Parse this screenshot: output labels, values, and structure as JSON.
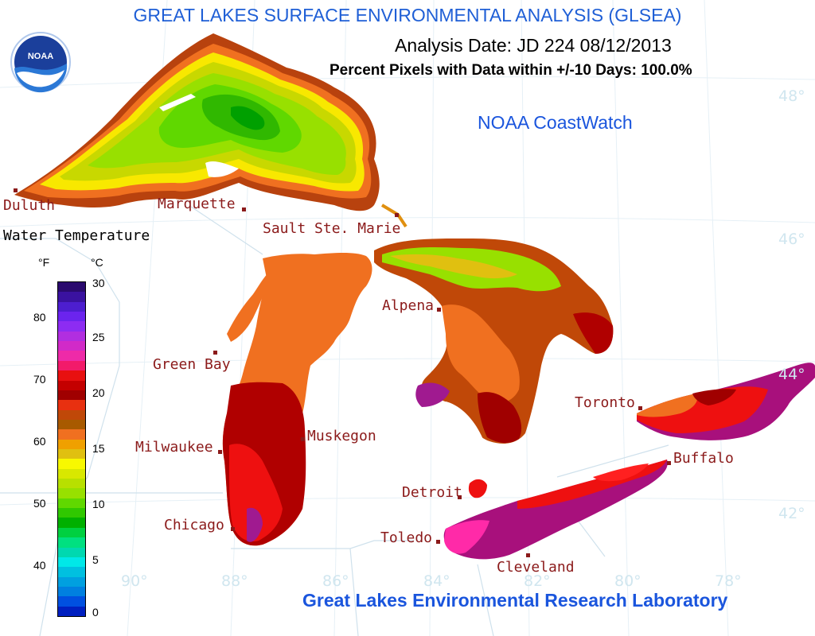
{
  "header": {
    "title": "GREAT LAKES SURFACE ENVIRONMENTAL ANALYSIS (GLSEA)",
    "analysis_date": "Analysis Date:  JD 224 08/12/2013",
    "percent_pixels": "Percent Pixels with Data within +/-10 Days: 100.0%",
    "coastwatch": "NOAA CoastWatch",
    "footer": "Great Lakes Environmental Research Laboratory"
  },
  "logo": {
    "text": "NOAA",
    "icon": "noaa-logo-icon"
  },
  "legend": {
    "title": "Water Temperature",
    "f_unit": "°F",
    "c_unit": "°C",
    "f_ticks": [
      "80",
      "70",
      "60",
      "50",
      "40"
    ],
    "c_ticks": [
      "30",
      "25",
      "20",
      "15",
      "10",
      "5",
      "0"
    ],
    "colors_top_to_bottom": [
      "#2a0a6e",
      "#3a12a0",
      "#4d1ecf",
      "#6b24ee",
      "#8d2cf2",
      "#b12ee0",
      "#d12ac8",
      "#ee2aa8",
      "#f21a6a",
      "#e81010",
      "#c40000",
      "#a00000",
      "#e83010",
      "#c04808",
      "#a85a00",
      "#f07020",
      "#f0a000",
      "#e0c010",
      "#f8f800",
      "#d8e800",
      "#b8e000",
      "#98e000",
      "#60d800",
      "#30c800",
      "#00b000",
      "#00d040",
      "#00e080",
      "#00d8b0",
      "#00e8e8",
      "#00c0e0",
      "#00a0e0",
      "#0080e0",
      "#0050e0",
      "#0020c0"
    ]
  },
  "cities": [
    {
      "name": "Duluth"
    },
    {
      "name": "Marquette"
    },
    {
      "name": "Sault Ste. Marie"
    },
    {
      "name": "Green Bay"
    },
    {
      "name": "Alpena"
    },
    {
      "name": "Milwaukee"
    },
    {
      "name": "Muskegon"
    },
    {
      "name": "Toronto"
    },
    {
      "name": "Buffalo"
    },
    {
      "name": "Detroit"
    },
    {
      "name": "Chicago"
    },
    {
      "name": "Toledo"
    },
    {
      "name": "Cleveland"
    }
  ],
  "graticule": {
    "lat_labels": [
      "48°",
      "46°",
      "44°",
      "42°"
    ],
    "lon_labels": [
      "90°",
      "88°",
      "86°",
      "84°",
      "82°",
      "80°",
      "78°"
    ]
  }
}
